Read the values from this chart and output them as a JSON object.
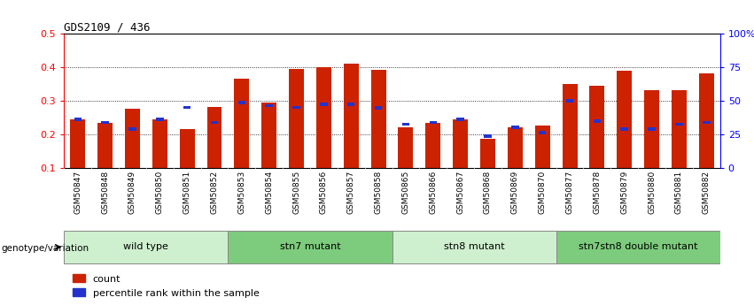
{
  "title": "GDS2109 / 436",
  "samples": [
    "GSM50847",
    "GSM50848",
    "GSM50849",
    "GSM50850",
    "GSM50851",
    "GSM50852",
    "GSM50853",
    "GSM50854",
    "GSM50855",
    "GSM50856",
    "GSM50857",
    "GSM50858",
    "GSM50865",
    "GSM50866",
    "GSM50867",
    "GSM50868",
    "GSM50869",
    "GSM50870",
    "GSM50877",
    "GSM50878",
    "GSM50879",
    "GSM50880",
    "GSM50881",
    "GSM50882"
  ],
  "red_values": [
    0.245,
    0.235,
    0.275,
    0.245,
    0.215,
    0.28,
    0.365,
    0.295,
    0.395,
    0.4,
    0.41,
    0.392,
    0.22,
    0.235,
    0.245,
    0.185,
    0.22,
    0.225,
    0.35,
    0.345,
    0.39,
    0.33,
    0.33,
    0.38
  ],
  "blue_values": [
    0.245,
    0.235,
    0.215,
    0.245,
    0.28,
    0.235,
    0.295,
    0.285,
    0.28,
    0.29,
    0.29,
    0.278,
    0.23,
    0.235,
    0.245,
    0.195,
    0.22,
    0.205,
    0.3,
    0.24,
    0.215,
    0.215,
    0.23,
    0.235
  ],
  "groups": [
    {
      "label": "wild type",
      "start": 0,
      "end": 6,
      "color": "#cff0cf"
    },
    {
      "label": "stn7 mutant",
      "start": 6,
      "end": 12,
      "color": "#7dcc7d"
    },
    {
      "label": "stn8 mutant",
      "start": 12,
      "end": 18,
      "color": "#cff0cf"
    },
    {
      "label": "stn7stn8 double mutant",
      "start": 18,
      "end": 24,
      "color": "#7dcc7d"
    }
  ],
  "ylim_left": [
    0.1,
    0.5
  ],
  "ylim_right": [
    0,
    100
  ],
  "yticks_left": [
    0.1,
    0.2,
    0.3,
    0.4,
    0.5
  ],
  "ytick_labels_right": [
    "0",
    "25",
    "50",
    "75",
    "100%"
  ],
  "yticks_right": [
    0,
    25,
    50,
    75,
    100
  ],
  "bar_color_red": "#cc2200",
  "bar_color_blue": "#2233cc",
  "bar_width": 0.55,
  "genotype_label": "genotype/variation"
}
